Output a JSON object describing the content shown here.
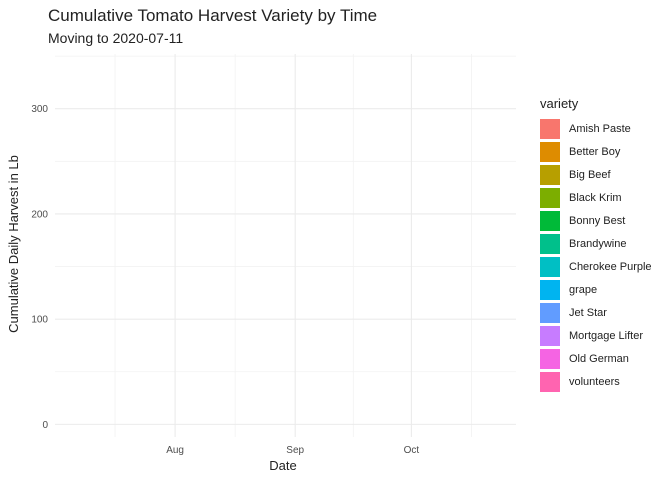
{
  "chart_data": {
    "type": "area",
    "title": "Cumulative Tomato Harvest Variety by Time",
    "subtitle": "Moving to 2020-07-11",
    "xlabel": "Date",
    "ylabel": "Cumulative Daily Harvest in Lb",
    "x_ticks": [
      "Aug",
      "Sep",
      "Oct"
    ],
    "xlim": [
      "2020-07-01",
      "2020-10-28"
    ],
    "x_tick_dates": [
      "2020-08-01",
      "2020-09-01",
      "2020-10-01"
    ],
    "y_ticks": [
      0,
      100,
      200,
      300
    ],
    "ylim": [
      -12,
      352
    ],
    "grid": true,
    "legend_title": "variety",
    "legend_position": "right",
    "series": [
      {
        "name": "Amish Paste",
        "color": "#F8766D",
        "values": []
      },
      {
        "name": "Better Boy",
        "color": "#DE8C00",
        "values": []
      },
      {
        "name": "Big Beef",
        "color": "#B79F00",
        "values": []
      },
      {
        "name": "Black Krim",
        "color": "#7CAE00",
        "values": []
      },
      {
        "name": "Bonny Best",
        "color": "#00BA38",
        "values": []
      },
      {
        "name": "Brandywine",
        "color": "#00C08B",
        "values": []
      },
      {
        "name": "Cherokee Purple",
        "color": "#00BFC4",
        "values": []
      },
      {
        "name": "grape",
        "color": "#00B4F0",
        "values": []
      },
      {
        "name": "Jet Star",
        "color": "#619CFF",
        "values": []
      },
      {
        "name": "Mortgage Lifter",
        "color": "#C77CFF",
        "values": []
      },
      {
        "name": "Old German",
        "color": "#F564E3",
        "values": []
      },
      {
        "name": "volunteers",
        "color": "#FF64B0",
        "values": []
      }
    ]
  }
}
